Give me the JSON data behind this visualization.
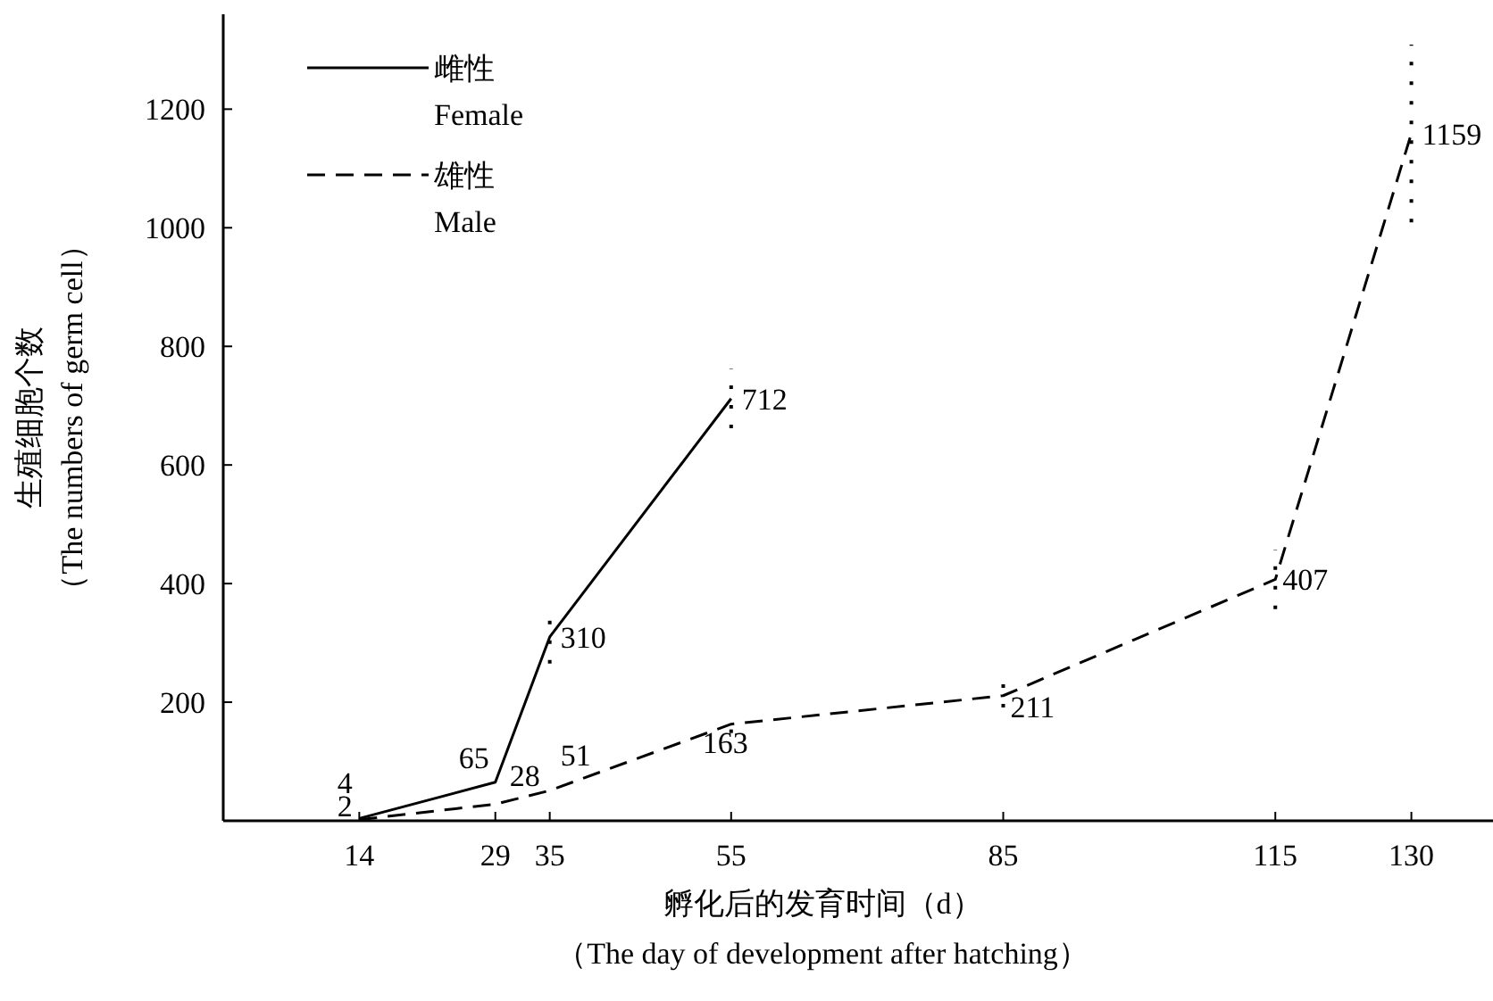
{
  "chart_data": {
    "type": "line",
    "xlabel": "孵化后的发育时间（d）",
    "ylabel": "生殖细胞个数",
    "annotations": [
      "（The day of development after hatching）",
      "（The numbers of germ cell）"
    ],
    "xlim": [
      -1,
      139
    ],
    "ylim": [
      0,
      1360
    ],
    "xticks": [
      14,
      29,
      35,
      55,
      85,
      115,
      130
    ],
    "yticks": [
      200,
      400,
      600,
      800,
      1000,
      1200
    ],
    "legend": "top left",
    "data_labels": true,
    "series": [
      {
        "name": "雌性\nFemale",
        "color": "#000000",
        "line_style": "solid",
        "x": [
          14,
          29,
          35,
          55
        ],
        "values": [
          4,
          65,
          310,
          712
        ],
        "errors": [
          null,
          null,
          45,
          50
        ]
      },
      {
        "name": "雄性\nMale",
        "color": "#000000",
        "line_style": "dashed",
        "x": [
          14,
          29,
          35,
          55,
          85,
          115,
          130
        ],
        "values": [
          2,
          28,
          51,
          163,
          211,
          407,
          1159
        ],
        "errors": [
          null,
          null,
          null,
          15,
          20,
          50,
          150
        ]
      }
    ]
  }
}
